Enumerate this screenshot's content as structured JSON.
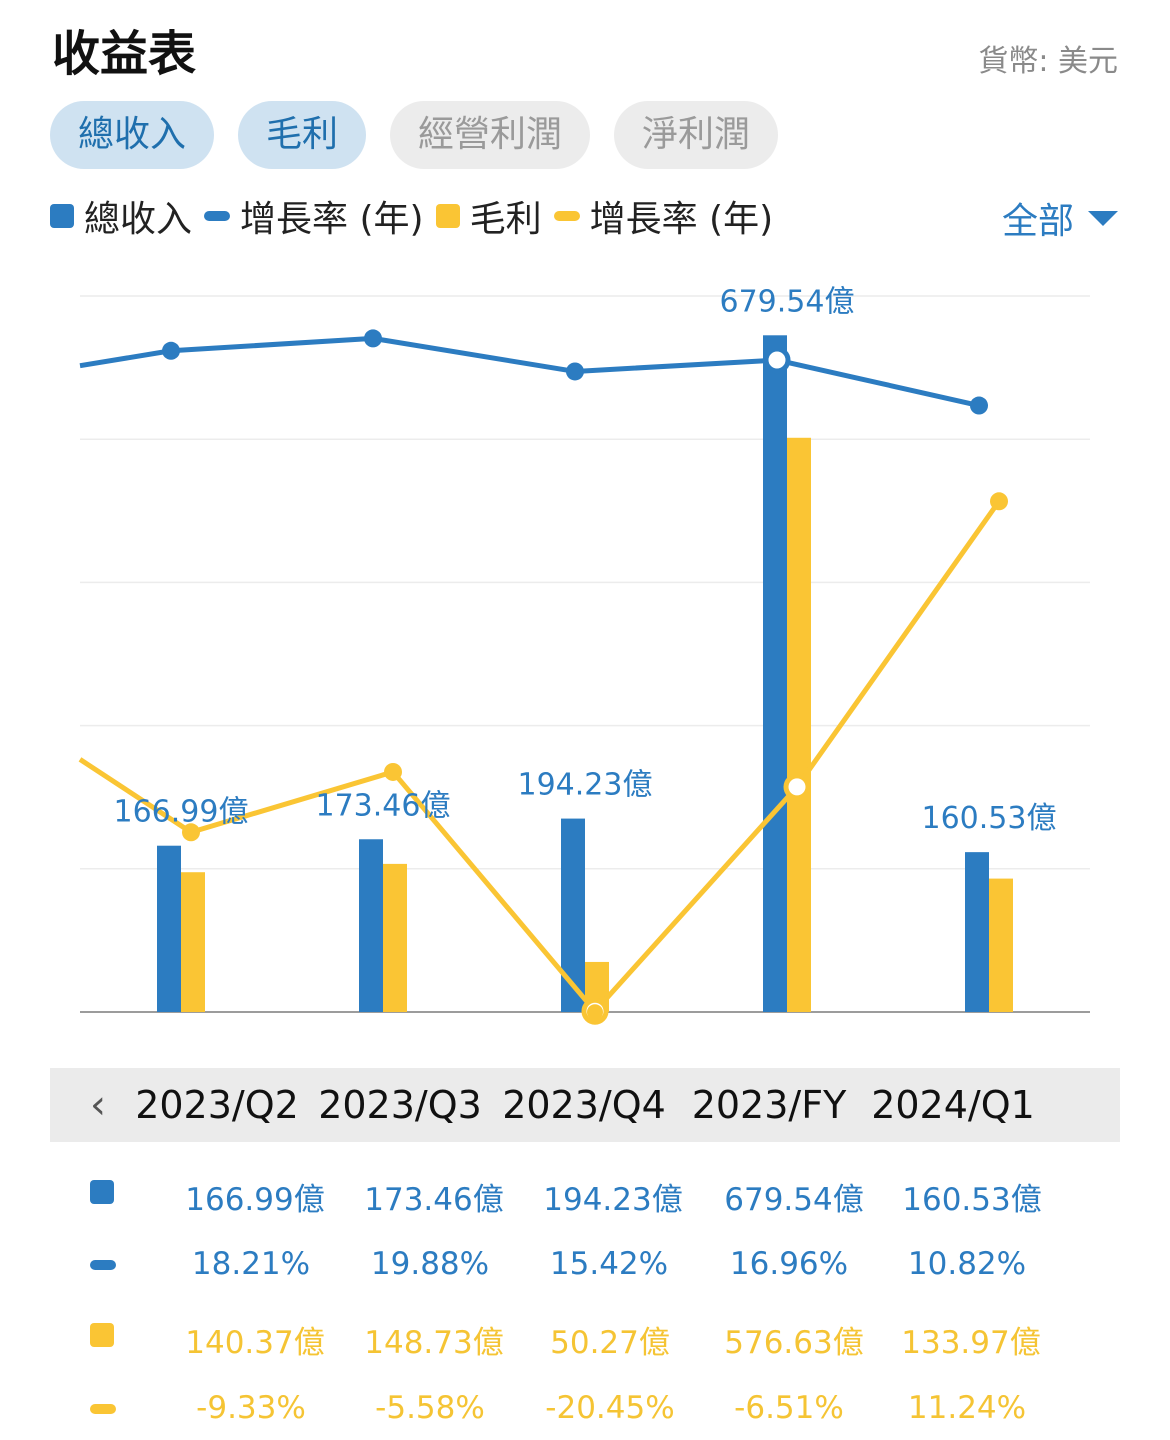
{
  "header": {
    "title": "收益表",
    "currency": "貨幣: 美元"
  },
  "tabs": [
    {
      "label": "總收入",
      "active": true
    },
    {
      "label": "毛利",
      "active": true
    },
    {
      "label": "經營利潤",
      "active": false
    },
    {
      "label": "淨利潤",
      "active": false
    }
  ],
  "legend": {
    "revenue": "總收入",
    "revenue_growth": "增長率 (年)",
    "gross_profit": "毛利",
    "gross_profit_growth": "增長率 (年)"
  },
  "filter": {
    "label": "全部"
  },
  "colors": {
    "blue": "#2C7CC1",
    "yellow": "#FAC534"
  },
  "chart_data": {
    "type": "bar",
    "categories": [
      "2023/Q2",
      "2023/Q3",
      "2023/Q4",
      "2023/FY",
      "2024/Q1"
    ],
    "series": [
      {
        "name": "總收入",
        "kind": "bar",
        "color": "#2C7CC1",
        "values": [
          166.99,
          173.46,
          194.23,
          679.54,
          160.53
        ]
      },
      {
        "name": "毛利",
        "kind": "bar",
        "color": "#FAC534",
        "values": [
          140.37,
          148.73,
          50.27,
          576.63,
          133.97
        ]
      },
      {
        "name": "增長率 (年)",
        "kind": "line",
        "color": "#2C7CC1",
        "values": [
          18.21,
          19.88,
          15.42,
          16.96,
          10.82
        ]
      },
      {
        "name": "增長率 (年)",
        "kind": "line",
        "color": "#FAC534",
        "values": [
          -9.33,
          -5.58,
          -20.45,
          -6.51,
          11.24
        ]
      }
    ],
    "bar_labels": [
      "166.99億",
      "173.46億",
      "194.23億",
      "679.54億",
      "160.53億"
    ],
    "bar_unit": "億",
    "grid": true
  },
  "periods": {
    "prev_icon": "chevron-left-icon",
    "labels": [
      "2023/Q2",
      "2023/Q3",
      "2023/Q4",
      "2023/FY",
      "2024/Q1"
    ]
  },
  "table": {
    "revenue": [
      "166.99億",
      "173.46億",
      "194.23億",
      "679.54億",
      "160.53億"
    ],
    "revenue_growth": [
      "18.21%",
      "19.88%",
      "15.42%",
      "16.96%",
      "10.82%"
    ],
    "gross_profit": [
      "140.37億",
      "148.73億",
      "50.27億",
      "576.63億",
      "133.97億"
    ],
    "gross_profit_growth": [
      "-9.33%",
      "-5.58%",
      "-20.45%",
      "-6.51%",
      "11.24%"
    ]
  }
}
